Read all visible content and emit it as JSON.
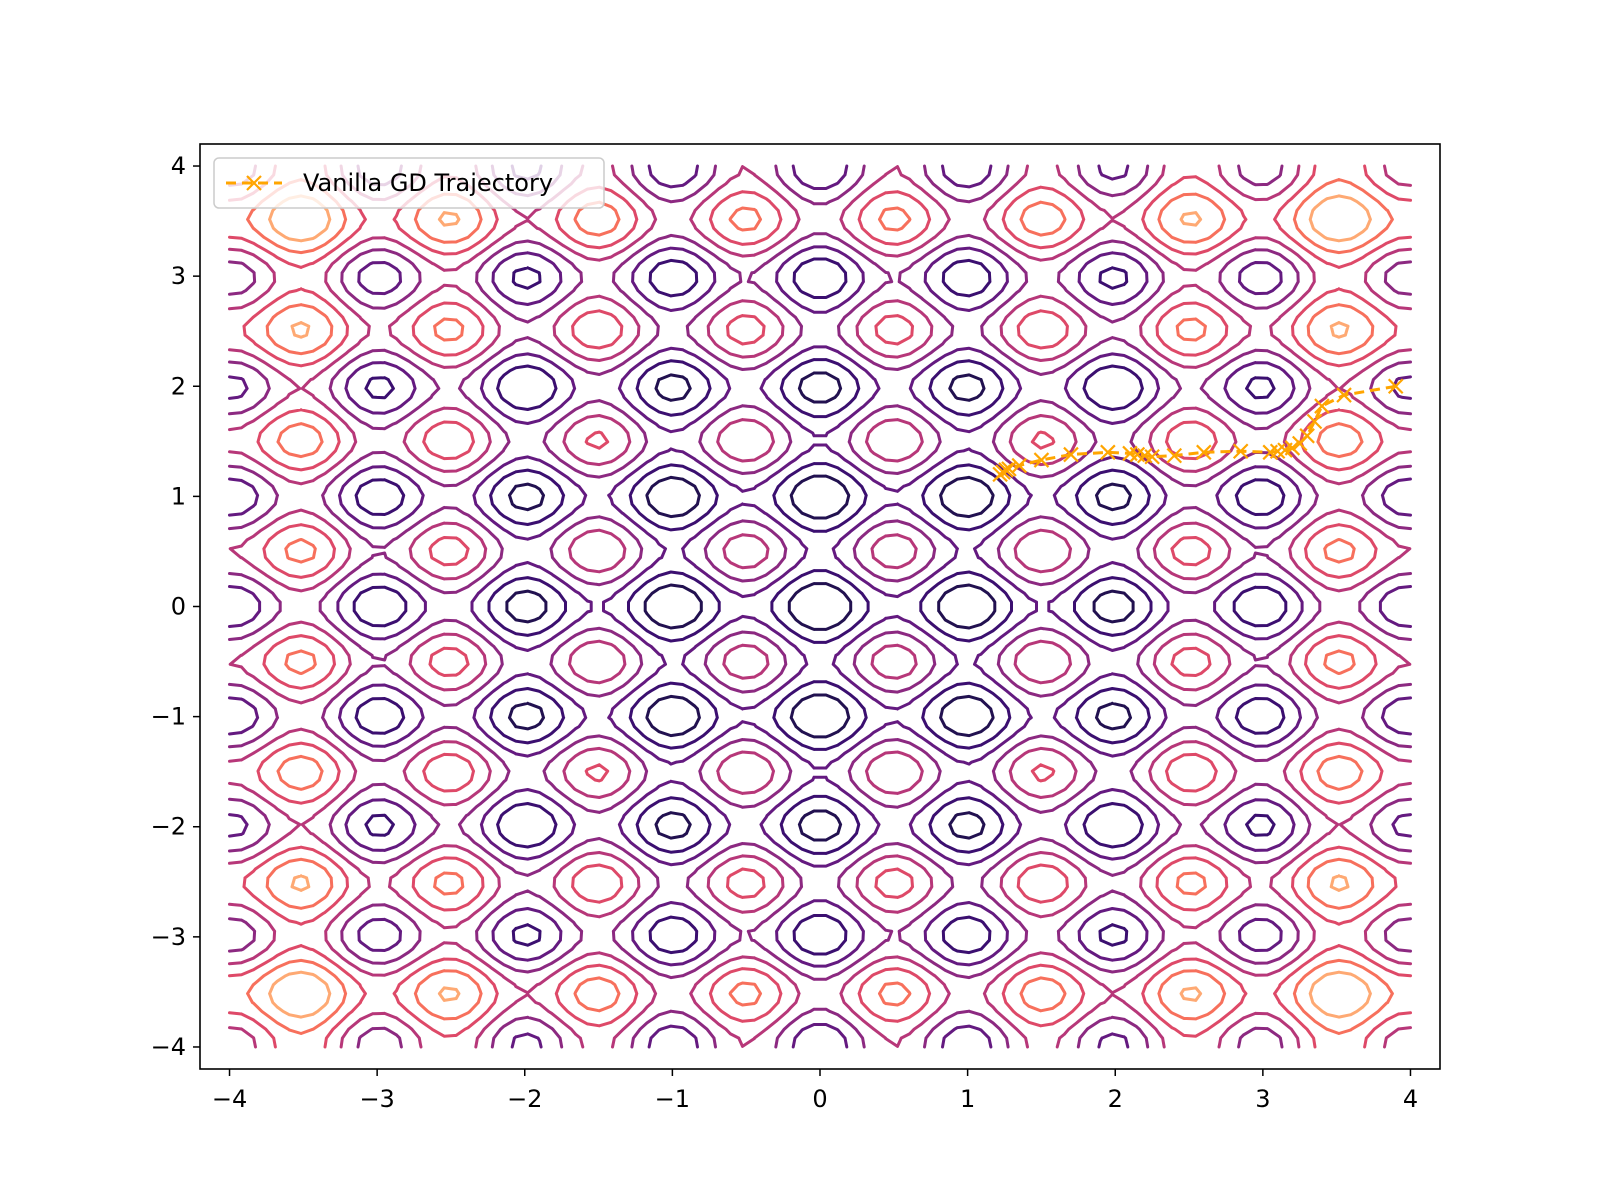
{
  "chart_data": {
    "type": "contour",
    "title": "",
    "xlabel": "",
    "ylabel": "",
    "xlim": [
      -4.2,
      4.2
    ],
    "ylim": [
      -4.2,
      4.2
    ],
    "x_ticks": [
      -4,
      -3,
      -2,
      -1,
      0,
      1,
      2,
      3,
      4
    ],
    "y_ticks": [
      -4,
      -3,
      -2,
      -1,
      0,
      1,
      2,
      3,
      4
    ],
    "x_tick_labels": [
      "−4",
      "−3",
      "−2",
      "−1",
      "0",
      "1",
      "2",
      "3",
      "4"
    ],
    "y_tick_labels": [
      "−4",
      "−3",
      "−2",
      "−1",
      "0",
      "1",
      "2",
      "3",
      "4"
    ],
    "grid": false,
    "legend_position": "top-left",
    "contour": {
      "function": "rastrigin_scaled",
      "num_levels": 8,
      "colormap": "magma",
      "level_colors": [
        "#221150",
        "#3b0f70",
        "#641a80",
        "#8c2981",
        "#b73779",
        "#de4968",
        "#f7705c",
        "#fea973",
        "#fcd29a"
      ]
    },
    "series": [
      {
        "name": "Vanilla GD Trajectory",
        "style": "dashed",
        "marker": "x",
        "color": "#ffa500",
        "x": [
          3.9,
          3.55,
          3.4,
          3.35,
          3.3,
          3.25,
          3.2,
          3.15,
          3.1,
          3.05,
          2.85,
          2.6,
          2.4,
          2.25,
          2.2,
          2.15,
          2.1,
          1.95,
          1.7,
          1.5,
          1.35,
          1.28,
          1.26,
          1.24,
          1.22
        ],
        "y": [
          2.0,
          1.92,
          1.82,
          1.68,
          1.55,
          1.48,
          1.44,
          1.42,
          1.41,
          1.4,
          1.41,
          1.4,
          1.37,
          1.36,
          1.37,
          1.38,
          1.39,
          1.4,
          1.38,
          1.33,
          1.28,
          1.25,
          1.24,
          1.22,
          1.2
        ]
      }
    ]
  }
}
